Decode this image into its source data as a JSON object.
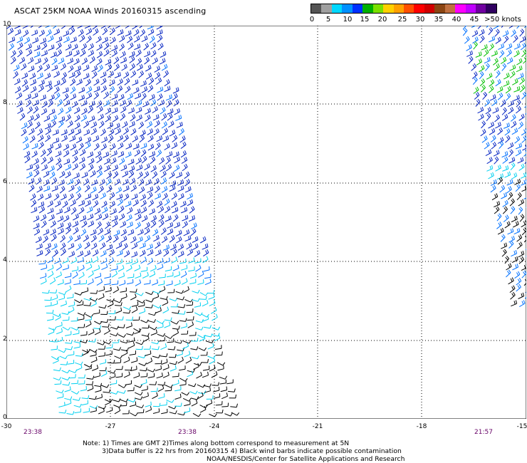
{
  "title": "ASCAT 25KM NOAA Winds 20160315 ascending",
  "legend": {
    "colors": [
      "#555555",
      "#a0a0a0",
      "#00d8ff",
      "#0090ff",
      "#0030ff",
      "#00b000",
      "#7be000",
      "#ffd000",
      "#ffa000",
      "#ff5000",
      "#ff0000",
      "#d00000",
      "#8b4513",
      "#c07040",
      "#ff00ff",
      "#c000ff",
      "#7000a0",
      "#300060"
    ],
    "labels": [
      "0",
      "5",
      "10",
      "15",
      "20",
      "25",
      "30",
      "35",
      "40",
      "45",
      ">50 knots"
    ]
  },
  "axes": {
    "lat_labels": [
      "10",
      "8",
      "6",
      "4",
      "2",
      "0"
    ],
    "lon_labels": [
      "-30",
      "-27",
      "-24",
      "-21",
      "-18",
      "-15"
    ]
  },
  "pass_times": [
    "23:38",
    "23:38",
    "21:57"
  ],
  "notes": {
    "line1": "Note: 1) Times are GMT 2)Times along bottom correspond to measurement at 5N",
    "line2": "3)Data buffer is 22 hrs from 20160315 4) Black wind barbs indicate possible contamination",
    "line3": "NOAA/NESDIS/Center for Satellite Applications and Research"
  },
  "wind_colors": {
    "dark_blue": "#0020c0",
    "blue": "#0070ff",
    "cyan": "#00d0f0",
    "green": "#00c000",
    "black": "#000000"
  }
}
